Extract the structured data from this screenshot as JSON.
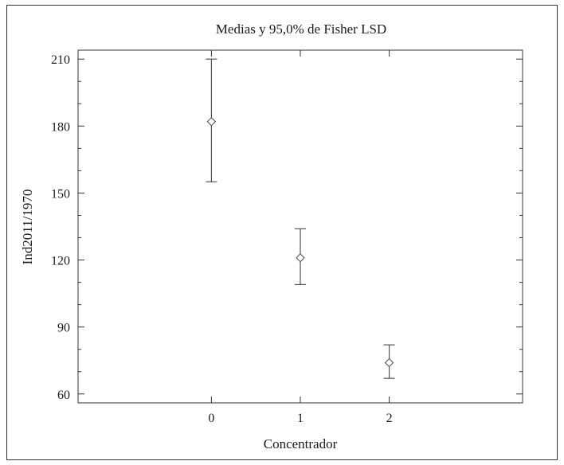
{
  "chart_data": {
    "type": "scatter",
    "title": "Medias y 95,0% de Fisher LSD",
    "xlabel": "Concentrador",
    "ylabel": "Ind2011/1970",
    "categories": [
      "0",
      "1",
      "2"
    ],
    "ylim": [
      56,
      214
    ],
    "yticks": [
      60,
      90,
      120,
      150,
      180,
      210
    ],
    "grid": false,
    "points": [
      {
        "category": "0",
        "mean": 182,
        "lower": 155,
        "upper": 210
      },
      {
        "category": "1",
        "mean": 121,
        "lower": 109,
        "upper": 134
      },
      {
        "category": "2",
        "mean": 74,
        "lower": 67,
        "upper": 82
      }
    ],
    "colors": {
      "marks": "#555555",
      "axis": "#333333"
    }
  }
}
